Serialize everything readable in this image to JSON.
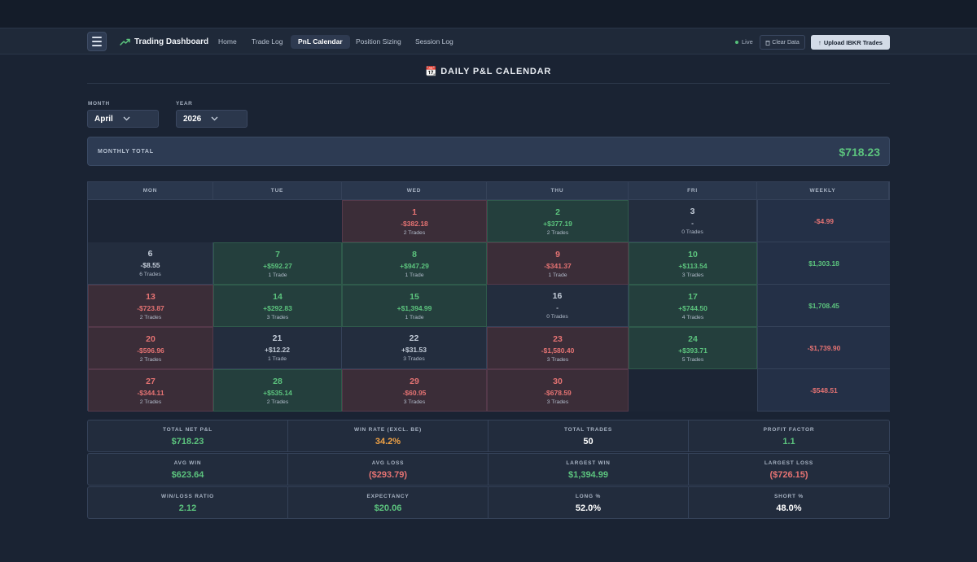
{
  "nav": {
    "brand": "Trading Dashboard",
    "brand_icon": "trending-up-icon",
    "items": [
      "Home",
      "Trade Log",
      "PnL Calendar",
      "Position Sizing",
      "Session Log"
    ],
    "active": "PnL Calendar",
    "live_label": "Live",
    "clear_label": "Clear Data",
    "upload_label": "Upload IBKR Trades"
  },
  "page": {
    "title": "📆 DAILY P&L CALENDAR",
    "month_label": "MONTH",
    "month_value": "April",
    "year_label": "YEAR",
    "year_value": "2026",
    "monthly_total_label": "MONTHLY TOTAL",
    "monthly_total_value": "$718.23"
  },
  "calendar": {
    "headers": [
      "MON",
      "TUE",
      "WED",
      "THU",
      "FRI",
      "WEEKLY"
    ],
    "weeks": [
      {
        "days": [
          null,
          null,
          {
            "day": "1",
            "pnl": "-$382.18",
            "trades": "2 Trades",
            "tone": "neg"
          },
          {
            "day": "2",
            "pnl": "+$377.19",
            "trades": "2 Trades",
            "tone": "pos"
          },
          {
            "day": "3",
            "pnl": "-",
            "trades": "0 Trades",
            "tone": "neu"
          }
        ],
        "weekly": "-$4.99",
        "weekly_tone": "neg"
      },
      {
        "days": [
          {
            "day": "6",
            "pnl": "-$8.55",
            "trades": "6 Trades",
            "tone": "neu"
          },
          {
            "day": "7",
            "pnl": "+$592.27",
            "trades": "1 Trade",
            "tone": "pos"
          },
          {
            "day": "8",
            "pnl": "+$947.29",
            "trades": "1 Trade",
            "tone": "pos"
          },
          {
            "day": "9",
            "pnl": "-$341.37",
            "trades": "1 Trade",
            "tone": "neg"
          },
          {
            "day": "10",
            "pnl": "+$113.54",
            "trades": "3 Trades",
            "tone": "pos"
          }
        ],
        "weekly": "$1,303.18",
        "weekly_tone": "pos"
      },
      {
        "days": [
          {
            "day": "13",
            "pnl": "-$723.87",
            "trades": "2 Trades",
            "tone": "neg"
          },
          {
            "day": "14",
            "pnl": "+$292.83",
            "trades": "3 Trades",
            "tone": "pos"
          },
          {
            "day": "15",
            "pnl": "+$1,394.99",
            "trades": "1 Trade",
            "tone": "pos"
          },
          {
            "day": "16",
            "pnl": "-",
            "trades": "0 Trades",
            "tone": "neu"
          },
          {
            "day": "17",
            "pnl": "+$744.50",
            "trades": "4 Trades",
            "tone": "pos"
          }
        ],
        "weekly": "$1,708.45",
        "weekly_tone": "pos"
      },
      {
        "days": [
          {
            "day": "20",
            "pnl": "-$596.96",
            "trades": "2 Trades",
            "tone": "neg"
          },
          {
            "day": "21",
            "pnl": "+$12.22",
            "trades": "1 Trade",
            "tone": "neu"
          },
          {
            "day": "22",
            "pnl": "+$31.53",
            "trades": "3 Trades",
            "tone": "neu"
          },
          {
            "day": "23",
            "pnl": "-$1,580.40",
            "trades": "3 Trades",
            "tone": "neg"
          },
          {
            "day": "24",
            "pnl": "+$393.71",
            "trades": "5 Trades",
            "tone": "pos"
          }
        ],
        "weekly": "-$1,739.90",
        "weekly_tone": "neg"
      },
      {
        "days": [
          {
            "day": "27",
            "pnl": "-$344.11",
            "trades": "2 Trades",
            "tone": "neg"
          },
          {
            "day": "28",
            "pnl": "+$535.14",
            "trades": "2 Trades",
            "tone": "pos"
          },
          {
            "day": "29",
            "pnl": "-$60.95",
            "trades": "3 Trades",
            "tone": "neg"
          },
          {
            "day": "30",
            "pnl": "-$678.59",
            "trades": "3 Trades",
            "tone": "neg"
          },
          null
        ],
        "weekly": "-$548.51",
        "weekly_tone": "neg"
      }
    ]
  },
  "stats": [
    [
      {
        "label": "TOTAL NET P&L",
        "value": "$718.23",
        "tone": "green"
      },
      {
        "label": "WIN RATE (EXCL. BE)",
        "value": "34.2%",
        "tone": "orange"
      },
      {
        "label": "TOTAL TRADES",
        "value": "50",
        "tone": "white"
      },
      {
        "label": "PROFIT FACTOR",
        "value": "1.1",
        "tone": "green"
      }
    ],
    [
      {
        "label": "AVG WIN",
        "value": "$623.64",
        "tone": "green"
      },
      {
        "label": "AVG LOSS",
        "value": "($293.79)",
        "tone": "red"
      },
      {
        "label": "LARGEST WIN",
        "value": "$1,394.99",
        "tone": "green"
      },
      {
        "label": "LARGEST LOSS",
        "value": "($726.15)",
        "tone": "red"
      }
    ],
    [
      {
        "label": "WIN/LOSS RATIO",
        "value": "2.12",
        "tone": "green"
      },
      {
        "label": "EXPECTANCY",
        "value": "$20.06",
        "tone": "green"
      },
      {
        "label": "LONG %",
        "value": "52.0%",
        "tone": "white"
      },
      {
        "label": "SHORT %",
        "value": "48.0%",
        "tone": "white"
      }
    ]
  ],
  "colors": {
    "positive": "#5cc47e",
    "negative": "#e57373",
    "win_rate": "#f0a245"
  }
}
